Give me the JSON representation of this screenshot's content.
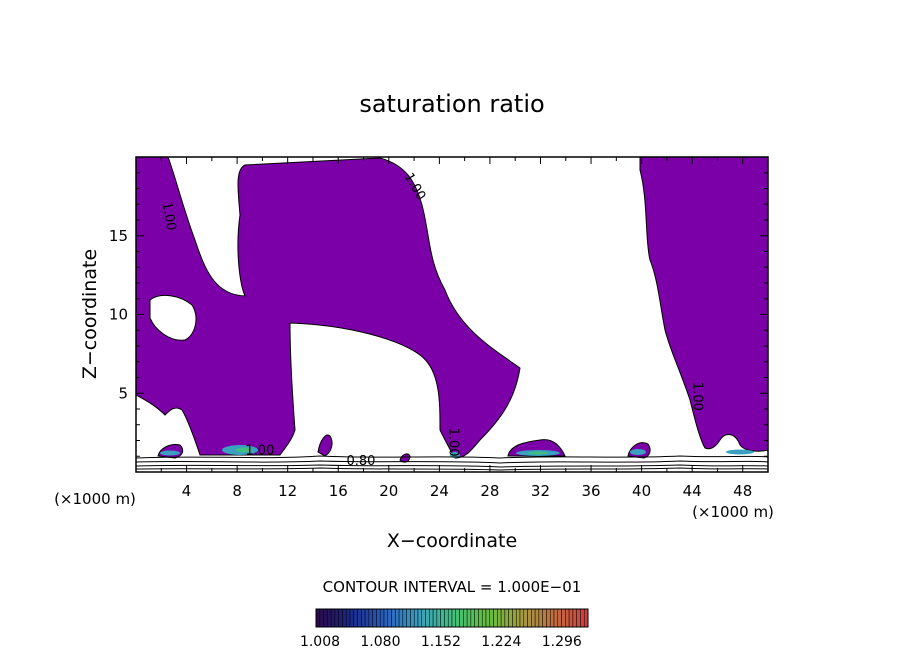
{
  "chart_data": {
    "type": "contour",
    "title": "saturation ratio",
    "xlabel": "X−coordinate",
    "ylabel": "Z−coordinate",
    "x_unit_left": "(×1000 m)",
    "x_unit_right": "(×1000 m)",
    "xlim": [
      0,
      50
    ],
    "ylim": [
      0,
      20
    ],
    "x_ticks": [
      4,
      8,
      12,
      16,
      20,
      24,
      28,
      32,
      36,
      40,
      44,
      48
    ],
    "y_ticks": [
      5,
      10,
      15
    ],
    "contour_interval_text": "CONTOUR INTERVAL = 1.000E−01",
    "contour_labels": [
      {
        "text": "1.00",
        "x": 2.3,
        "y": 16.2,
        "angle": 80
      },
      {
        "text": "1.00",
        "x": 21.8,
        "y": 18.0,
        "angle": 60
      },
      {
        "text": "1.00",
        "x": 24.8,
        "y": 1.9,
        "angle": 90
      },
      {
        "text": "1.00",
        "x": 44.1,
        "y": 4.8,
        "angle": 90
      },
      {
        "text": "1.00",
        "x": 9.8,
        "y": 1.1,
        "angle": 0
      },
      {
        "text": "0.80",
        "x": 17.8,
        "y": 0.45,
        "angle": 0
      }
    ],
    "fill_color": "#7b00a8",
    "colorbar": {
      "ticks": [
        "1.008",
        "1.080",
        "1.152",
        "1.224",
        "1.296"
      ],
      "min": 1.008,
      "max": 1.332,
      "colors": [
        "#2a0a4a",
        "#1a2a8a",
        "#2a60c0",
        "#3aa0c0",
        "#40c080",
        "#60c040",
        "#a0a040",
        "#c07040",
        "#d04040"
      ]
    },
    "grid": false
  }
}
